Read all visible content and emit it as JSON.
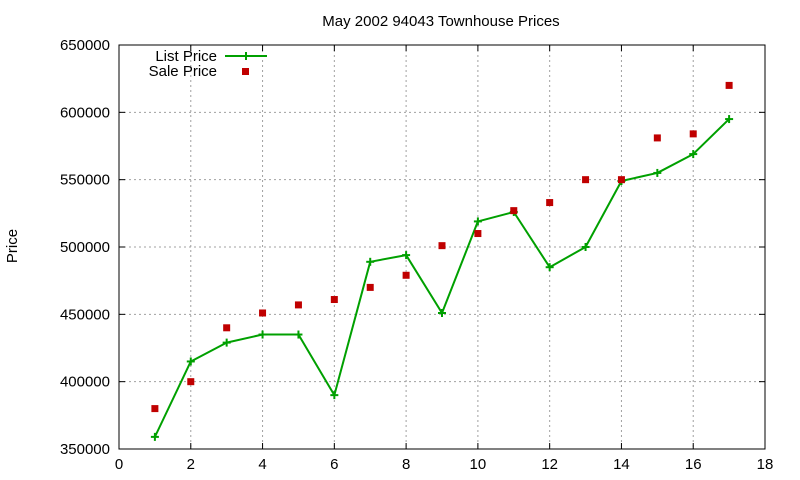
{
  "chart_data": {
    "type": "line",
    "title": "May 2002 94043 Townhouse Prices",
    "xlabel": "",
    "ylabel": "Price",
    "xlim": [
      0,
      18
    ],
    "ylim": [
      350000,
      650000
    ],
    "x_ticks": [
      0,
      2,
      4,
      6,
      8,
      10,
      12,
      14,
      16,
      18
    ],
    "y_ticks": [
      350000,
      400000,
      450000,
      500000,
      550000,
      600000,
      650000
    ],
    "grid": true,
    "legend_position": "top-left",
    "series": [
      {
        "name": "List Price",
        "style": "line-with-plus-markers",
        "color": "#00a000",
        "x": [
          1,
          2,
          3,
          4,
          5,
          6,
          7,
          8,
          9,
          10,
          11,
          12,
          13,
          14,
          15,
          16,
          17
        ],
        "y": [
          359000,
          415000,
          429000,
          435000,
          435000,
          390000,
          489000,
          494000,
          451000,
          519000,
          526000,
          485000,
          500000,
          549000,
          555000,
          569000,
          595000
        ]
      },
      {
        "name": "Sale Price",
        "style": "square-points",
        "color": "#c00000",
        "x": [
          1,
          2,
          3,
          4,
          5,
          6,
          7,
          8,
          9,
          10,
          11,
          12,
          13,
          14,
          15,
          16,
          17
        ],
        "y": [
          380000,
          400000,
          440000,
          451000,
          457000,
          461000,
          470000,
          479000,
          501000,
          510000,
          527000,
          533000,
          550000,
          550000,
          581000,
          584000,
          620000
        ]
      }
    ]
  }
}
